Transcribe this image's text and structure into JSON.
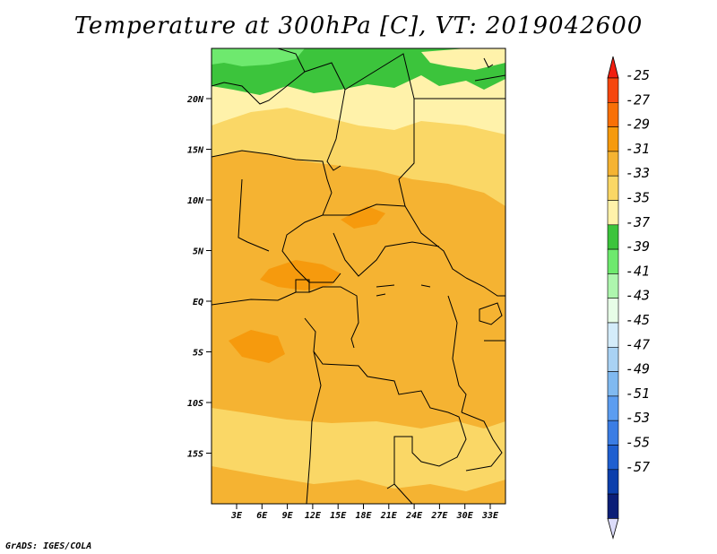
{
  "title": "Temperature at 300hPa [C], VT: 2019042600",
  "footer": "GrADS: IGES/COLA",
  "map": {
    "lat_labels": [
      "20N",
      "15N",
      "10N",
      "5N",
      "EQ",
      "5S",
      "10S",
      "15S"
    ],
    "lon_labels": [
      "3E",
      "6E",
      "9E",
      "12E",
      "15E",
      "18E",
      "21E",
      "24E",
      "27E",
      "30E",
      "33E"
    ]
  },
  "colorbar": {
    "labels": [
      "-25",
      "-27",
      "-29",
      "-31",
      "-33",
      "-35",
      "-37",
      "-39",
      "-41",
      "-43",
      "-45",
      "-47",
      "-49",
      "-51",
      "-53",
      "-55",
      "-57"
    ],
    "colors": [
      "#f6460e",
      "#f87006",
      "#f69a0d",
      "#f5b332",
      "#fad766",
      "#fff2aa",
      "#3cc43c",
      "#6ee96e",
      "#aef6ae",
      "#e7fde7",
      "#d4ecfa",
      "#a9d2f4",
      "#80b9f0",
      "#5c9df0",
      "#3b7de4",
      "#1f5fd0",
      "#0c3fac",
      "#0b1e77"
    ],
    "end_colors": {
      "top": "#f21e10",
      "bottom": "#dcdcfa"
    }
  }
}
